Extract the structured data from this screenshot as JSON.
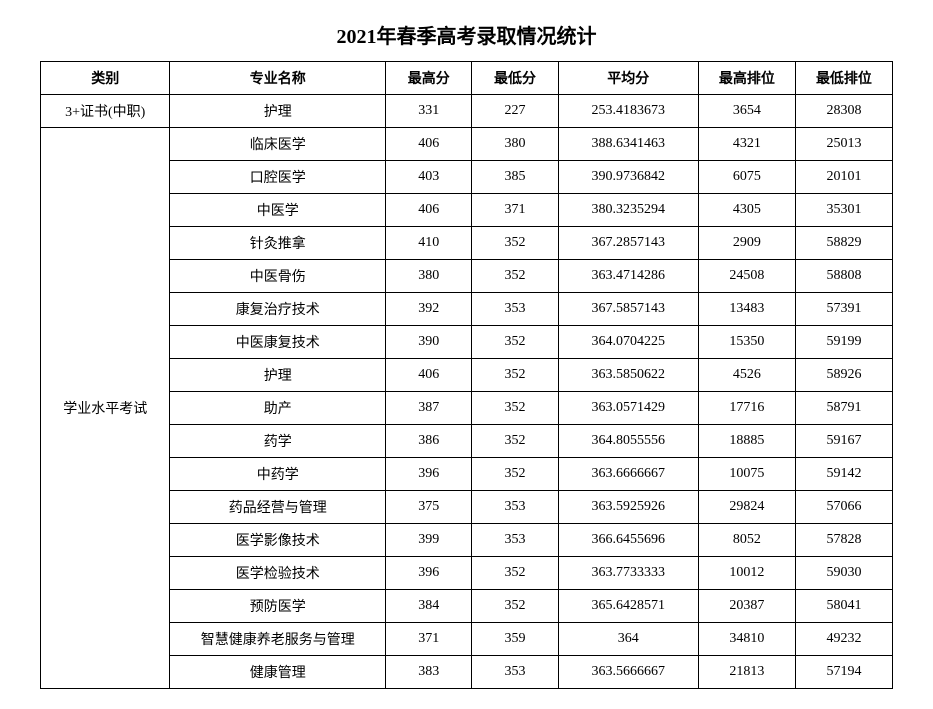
{
  "title": "2021年春季高考录取情况统计",
  "headers": {
    "category": "类别",
    "major": "专业名称",
    "high_score": "最高分",
    "low_score": "最低分",
    "avg_score": "平均分",
    "high_rank": "最高排位",
    "low_rank": "最低排位"
  },
  "categories": [
    {
      "name": "3+证书(中职)",
      "rowspan": 1,
      "rows": [
        {
          "major": "护理",
          "high": "331",
          "low": "227",
          "avg": "253.4183673",
          "rank_high": "3654",
          "rank_low": "28308"
        }
      ]
    },
    {
      "name": "学业水平考试",
      "rowspan": 17,
      "rows": [
        {
          "major": "临床医学",
          "high": "406",
          "low": "380",
          "avg": "388.6341463",
          "rank_high": "4321",
          "rank_low": "25013"
        },
        {
          "major": "口腔医学",
          "high": "403",
          "low": "385",
          "avg": "390.9736842",
          "rank_high": "6075",
          "rank_low": "20101"
        },
        {
          "major": "中医学",
          "high": "406",
          "low": "371",
          "avg": "380.3235294",
          "rank_high": "4305",
          "rank_low": "35301"
        },
        {
          "major": "针灸推拿",
          "high": "410",
          "low": "352",
          "avg": "367.2857143",
          "rank_high": "2909",
          "rank_low": "58829"
        },
        {
          "major": "中医骨伤",
          "high": "380",
          "low": "352",
          "avg": "363.4714286",
          "rank_high": "24508",
          "rank_low": "58808"
        },
        {
          "major": "康复治疗技术",
          "high": "392",
          "low": "353",
          "avg": "367.5857143",
          "rank_high": "13483",
          "rank_low": "57391"
        },
        {
          "major": "中医康复技术",
          "high": "390",
          "low": "352",
          "avg": "364.0704225",
          "rank_high": "15350",
          "rank_low": "59199"
        },
        {
          "major": "护理",
          "high": "406",
          "low": "352",
          "avg": "363.5850622",
          "rank_high": "4526",
          "rank_low": "58926"
        },
        {
          "major": "助产",
          "high": "387",
          "low": "352",
          "avg": "363.0571429",
          "rank_high": "17716",
          "rank_low": "58791"
        },
        {
          "major": "药学",
          "high": "386",
          "low": "352",
          "avg": "364.8055556",
          "rank_high": "18885",
          "rank_low": "59167"
        },
        {
          "major": "中药学",
          "high": "396",
          "low": "352",
          "avg": "363.6666667",
          "rank_high": "10075",
          "rank_low": "59142"
        },
        {
          "major": "药品经营与管理",
          "high": "375",
          "low": "353",
          "avg": "363.5925926",
          "rank_high": "29824",
          "rank_low": "57066"
        },
        {
          "major": "医学影像技术",
          "high": "399",
          "low": "353",
          "avg": "366.6455696",
          "rank_high": "8052",
          "rank_low": "57828"
        },
        {
          "major": "医学检验技术",
          "high": "396",
          "low": "352",
          "avg": "363.7733333",
          "rank_high": "10012",
          "rank_low": "59030"
        },
        {
          "major": "预防医学",
          "high": "384",
          "low": "352",
          "avg": "365.6428571",
          "rank_high": "20387",
          "rank_low": "58041"
        },
        {
          "major": "智慧健康养老服务与管理",
          "high": "371",
          "low": "359",
          "avg": "364",
          "rank_high": "34810",
          "rank_low": "49232"
        },
        {
          "major": "健康管理",
          "high": "383",
          "low": "353",
          "avg": "363.5666667",
          "rank_high": "21813",
          "rank_low": "57194"
        }
      ]
    }
  ],
  "styling": {
    "background_color": "#ffffff",
    "border_color": "#000000",
    "text_color": "#000000",
    "title_fontsize": 20,
    "cell_fontsize": 14,
    "font_family": "SimSun"
  }
}
